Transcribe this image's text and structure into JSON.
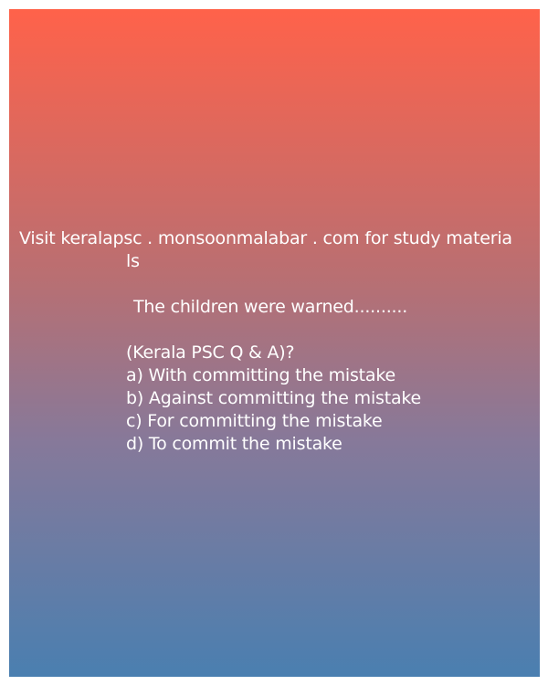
{
  "promo": {
    "line1": "Visit keralapsc . monsoonmalabar . com for study materia",
    "line2": "ls"
  },
  "question": "The children were warned..........",
  "source": "(Kerala PSC Q & A)?",
  "options": [
    "a) With committing the mistake",
    "b) Against committing the mistake",
    "c) For committing the mistake",
    "d) To commit the mistake"
  ],
  "colors": {
    "gradient_top": "#ff624a",
    "gradient_bottom": "#4a7fb0",
    "text": "#ffffff"
  }
}
